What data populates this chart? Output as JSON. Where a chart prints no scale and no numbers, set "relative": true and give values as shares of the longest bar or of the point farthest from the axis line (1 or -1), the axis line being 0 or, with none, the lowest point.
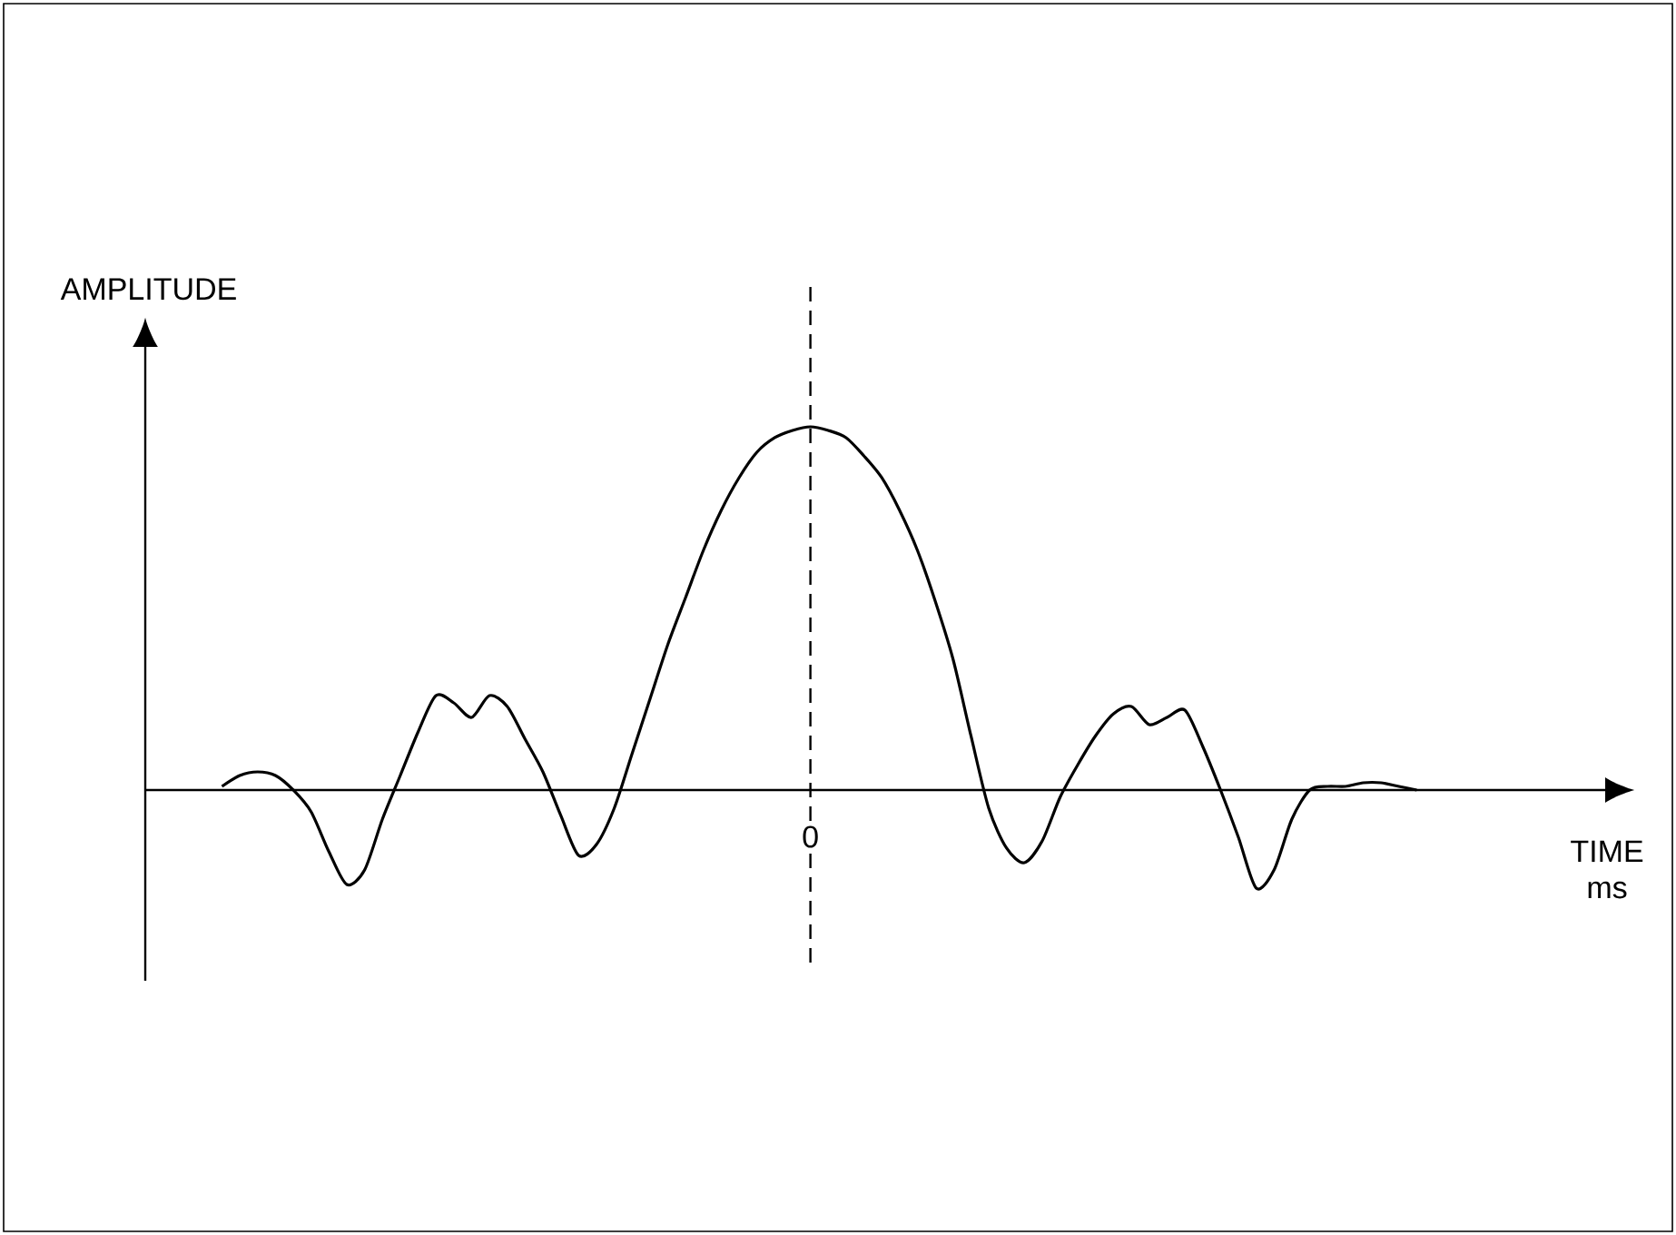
{
  "chart_data": {
    "type": "line",
    "xlabel": "TIME ms",
    "ylabel": "AMPLITUDE",
    "relative": true,
    "annotations": [
      "0"
    ],
    "color": "#000000",
    "marker": "none",
    "line_style": "solid",
    "categories": [
      null,
      null,
      null,
      null,
      null,
      null,
      null,
      null,
      null,
      null,
      null,
      null,
      null,
      null,
      null,
      null,
      null,
      null,
      null,
      null,
      null,
      null,
      null,
      null,
      null,
      null,
      null,
      null,
      null,
      null,
      null,
      null,
      null,
      null,
      null,
      null,
      null,
      null,
      null,
      null,
      null,
      null,
      null,
      null,
      null,
      null,
      null,
      null,
      null,
      null,
      null,
      null,
      null,
      null,
      null,
      null,
      null,
      null,
      null,
      null,
      null,
      null,
      null,
      null,
      null,
      null,
      null,
      null,
      null,
      null,
      null,
      null,
      null
    ],
    "values": [
      null,
      null,
      null,
      0.01,
      0.04,
      0.05,
      0.04,
      0,
      -0.06,
      -0.17,
      -0.26,
      -0.22,
      -0.08,
      0.04,
      0.16,
      0.26,
      0.24,
      0.2,
      0.26,
      0.23,
      0.14,
      0.05,
      -0.07,
      -0.18,
      -0.15,
      -0.05,
      0.1,
      0.25,
      0.4,
      0.53,
      0.66,
      0.77,
      0.86,
      0.93,
      0.97,
      0.99,
      1,
      0.99,
      0.97,
      0.92,
      0.86,
      0.77,
      0.66,
      0.52,
      0.36,
      0.15,
      -0.05,
      -0.16,
      -0.2,
      -0.14,
      -0.02,
      0.07,
      0.15,
      0.21,
      0.23,
      0.18,
      0.2,
      0.22,
      0.12,
      0,
      -0.13,
      -0.27,
      -0.22,
      -0.08,
      0,
      0.01,
      0.01,
      0.02,
      0.02,
      0.01,
      0,
      null,
      null
    ]
  }
}
